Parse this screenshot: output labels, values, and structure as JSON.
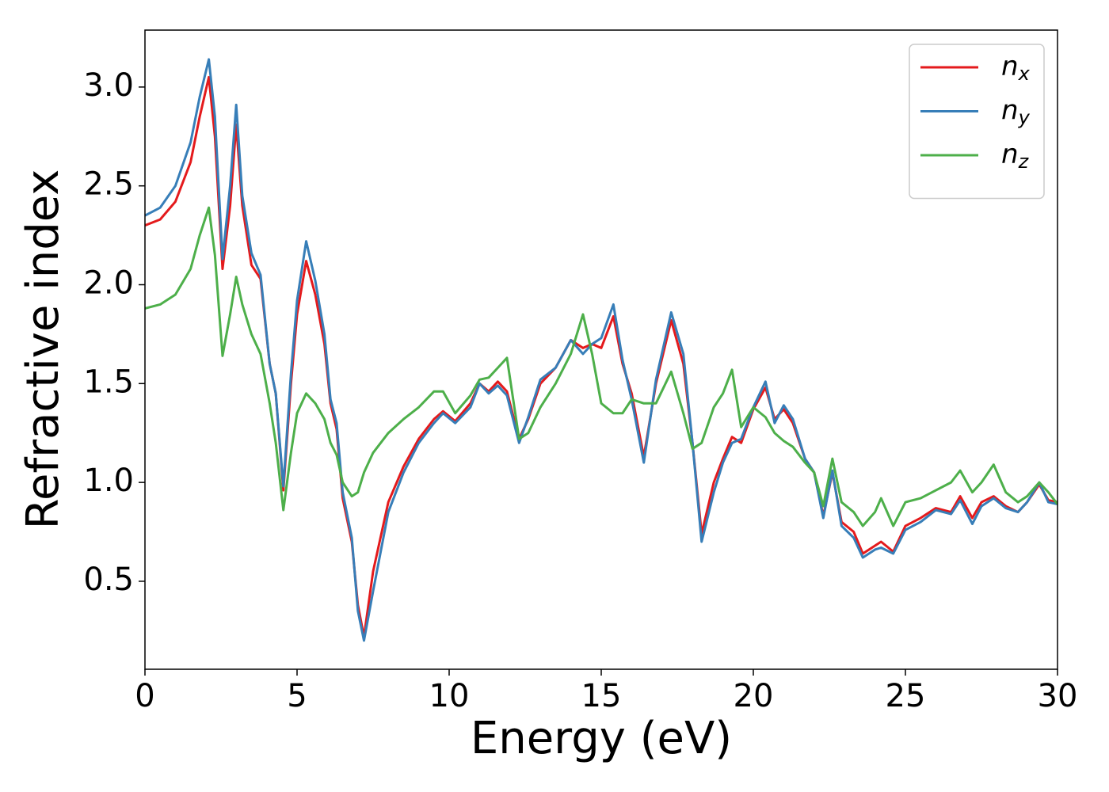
{
  "chart_data": {
    "type": "line",
    "xlabel": "Energy (eV)",
    "ylabel": "Refractive index",
    "x": [
      0,
      0.5,
      1.0,
      1.5,
      1.8,
      2.1,
      2.3,
      2.55,
      2.8,
      3.0,
      3.2,
      3.5,
      3.8,
      4.1,
      4.3,
      4.55,
      4.8,
      5.0,
      5.3,
      5.6,
      5.9,
      6.1,
      6.3,
      6.5,
      6.8,
      7.0,
      7.2,
      7.5,
      8.0,
      8.5,
      9.0,
      9.5,
      9.8,
      10.2,
      10.7,
      11.0,
      11.3,
      11.6,
      11.9,
      12.3,
      12.6,
      13.0,
      13.5,
      14.0,
      14.4,
      14.7,
      15.0,
      15.4,
      15.7,
      16.0,
      16.4,
      16.8,
      17.3,
      17.7,
      18.0,
      18.3,
      18.7,
      19.0,
      19.3,
      19.6,
      20.0,
      20.4,
      20.7,
      21.0,
      21.3,
      21.7,
      22.0,
      22.3,
      22.6,
      22.9,
      23.3,
      23.6,
      24.0,
      24.2,
      24.6,
      25.0,
      25.5,
      26.0,
      26.5,
      26.8,
      27.2,
      27.5,
      27.9,
      28.3,
      28.7,
      29.0,
      29.4,
      29.7,
      30.0
    ],
    "series": [
      {
        "name": "n_x",
        "color": "#e41a1c",
        "values": [
          2.3,
          2.33,
          2.42,
          2.62,
          2.85,
          3.05,
          2.75,
          2.08,
          2.4,
          2.81,
          2.4,
          2.1,
          2.03,
          1.6,
          1.45,
          0.96,
          1.5,
          1.85,
          2.12,
          1.95,
          1.7,
          1.4,
          1.27,
          0.92,
          0.7,
          0.38,
          0.22,
          0.55,
          0.9,
          1.08,
          1.22,
          1.32,
          1.36,
          1.31,
          1.4,
          1.5,
          1.46,
          1.51,
          1.46,
          1.22,
          1.32,
          1.5,
          1.58,
          1.72,
          1.68,
          1.7,
          1.68,
          1.84,
          1.6,
          1.45,
          1.13,
          1.5,
          1.82,
          1.6,
          1.2,
          0.74,
          1.0,
          1.12,
          1.23,
          1.2,
          1.37,
          1.48,
          1.32,
          1.37,
          1.3,
          1.12,
          1.05,
          0.83,
          1.05,
          0.8,
          0.75,
          0.64,
          0.68,
          0.7,
          0.65,
          0.78,
          0.82,
          0.87,
          0.85,
          0.93,
          0.82,
          0.9,
          0.93,
          0.88,
          0.85,
          0.9,
          0.99,
          0.91,
          0.9
        ]
      },
      {
        "name": "n_y",
        "color": "#377eb8",
        "values": [
          2.35,
          2.39,
          2.5,
          2.72,
          2.95,
          3.14,
          2.85,
          2.13,
          2.5,
          2.91,
          2.45,
          2.16,
          2.05,
          1.6,
          1.45,
          0.98,
          1.55,
          1.92,
          2.22,
          2.02,
          1.75,
          1.42,
          1.3,
          0.95,
          0.72,
          0.35,
          0.2,
          0.45,
          0.85,
          1.05,
          1.2,
          1.3,
          1.35,
          1.3,
          1.38,
          1.5,
          1.45,
          1.49,
          1.44,
          1.2,
          1.33,
          1.52,
          1.58,
          1.72,
          1.65,
          1.7,
          1.73,
          1.9,
          1.62,
          1.42,
          1.1,
          1.52,
          1.86,
          1.65,
          1.2,
          0.7,
          0.95,
          1.1,
          1.2,
          1.22,
          1.38,
          1.51,
          1.3,
          1.39,
          1.32,
          1.12,
          1.05,
          0.82,
          1.06,
          0.78,
          0.72,
          0.62,
          0.66,
          0.67,
          0.64,
          0.76,
          0.8,
          0.86,
          0.84,
          0.91,
          0.79,
          0.88,
          0.92,
          0.87,
          0.85,
          0.9,
          1.0,
          0.9,
          0.89
        ]
      },
      {
        "name": "n_z",
        "color": "#4daf4a",
        "values": [
          1.88,
          1.9,
          1.95,
          2.08,
          2.25,
          2.39,
          2.15,
          1.64,
          1.85,
          2.04,
          1.9,
          1.75,
          1.65,
          1.4,
          1.2,
          0.86,
          1.15,
          1.35,
          1.45,
          1.4,
          1.32,
          1.2,
          1.14,
          1.0,
          0.93,
          0.95,
          1.05,
          1.15,
          1.25,
          1.32,
          1.38,
          1.46,
          1.46,
          1.35,
          1.44,
          1.52,
          1.53,
          1.58,
          1.63,
          1.22,
          1.25,
          1.38,
          1.5,
          1.65,
          1.85,
          1.65,
          1.4,
          1.35,
          1.35,
          1.42,
          1.4,
          1.4,
          1.56,
          1.35,
          1.17,
          1.2,
          1.38,
          1.45,
          1.57,
          1.28,
          1.38,
          1.33,
          1.25,
          1.21,
          1.18,
          1.1,
          1.05,
          0.88,
          1.12,
          0.9,
          0.85,
          0.78,
          0.85,
          0.92,
          0.78,
          0.9,
          0.92,
          0.96,
          1.0,
          1.06,
          0.95,
          1.0,
          1.09,
          0.95,
          0.9,
          0.93,
          1.0,
          0.95,
          0.89
        ]
      }
    ],
    "xlim": [
      0,
      30
    ],
    "xticks": [
      0,
      5,
      10,
      15,
      20,
      25,
      30
    ],
    "ylim": [
      0.055,
      3.288
    ],
    "yticks": [
      0.5,
      {
        "value": 1.0,
        "label": "1.0"
      },
      1.5,
      {
        "value": 2.0,
        "label": "2.0"
      },
      2.5,
      {
        "value": 3.0,
        "label": "3.0"
      }
    ],
    "grid": false,
    "legend": "upper right"
  }
}
